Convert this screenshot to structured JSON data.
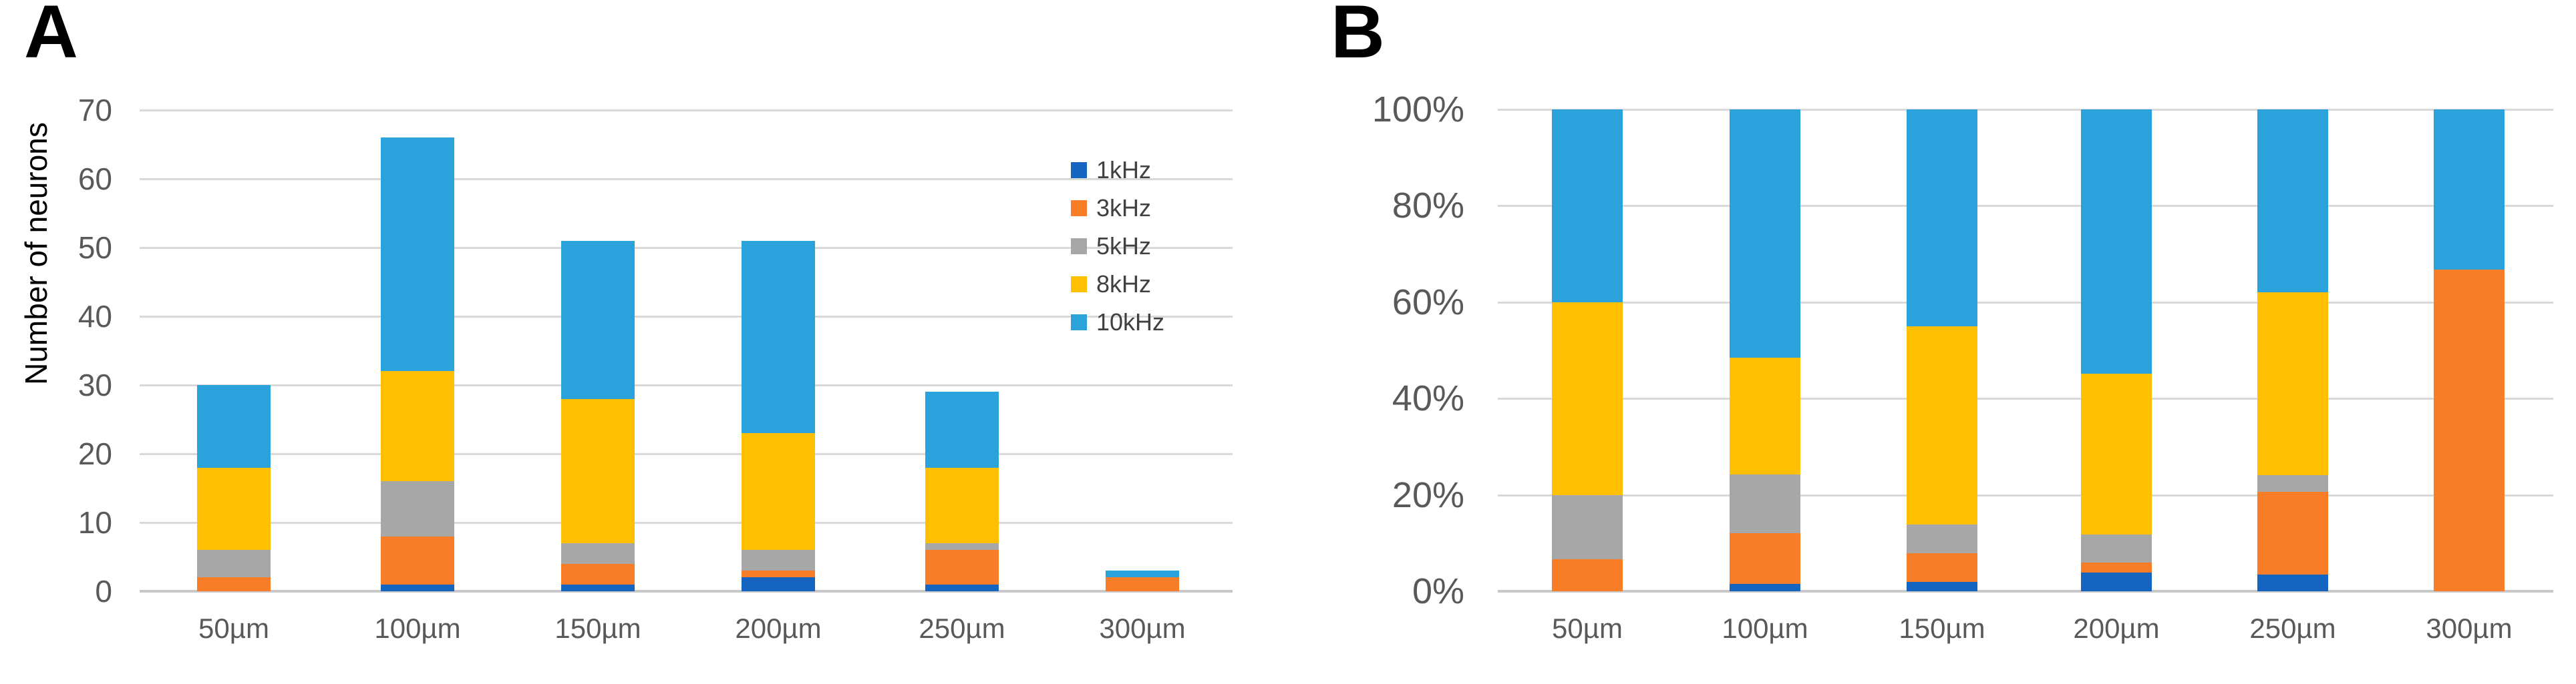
{
  "panels": {
    "a": {
      "label": "A",
      "y_axis_title": "Number of neurons"
    },
    "b": {
      "label": "B"
    }
  },
  "colors": {
    "khz1": "#1565C0",
    "khz3": "#F87D28",
    "khz5": "#A7A7A7",
    "khz8": "#FFC003",
    "khz10": "#2CA2DC",
    "gridline": "#D9D9D9",
    "axis_line": "#C7C7C7",
    "tick_text": "#595959",
    "legend_text": "#404040"
  },
  "chart_data": [
    {
      "id": "A",
      "type": "bar",
      "stacked": true,
      "percent": false,
      "ylabel": "Number of neurons",
      "xlabel": "",
      "ylim": [
        0,
        70
      ],
      "grid": true,
      "legend_position": "right-inside",
      "categories": [
        "50µm",
        "100µm",
        "150µm",
        "200µm",
        "250µm",
        "300µm"
      ],
      "yticks": [
        {
          "value": 0,
          "label": "0"
        },
        {
          "value": 10,
          "label": "10"
        },
        {
          "value": 20,
          "label": "20"
        },
        {
          "value": 30,
          "label": "30"
        },
        {
          "value": 40,
          "label": "40"
        },
        {
          "value": 50,
          "label": "50"
        },
        {
          "value": 60,
          "label": "60"
        },
        {
          "value": 70,
          "label": "70"
        }
      ],
      "series": [
        {
          "name": "1kHz",
          "color": "#1565C0",
          "values": [
            0,
            1,
            1,
            2,
            1,
            0
          ]
        },
        {
          "name": "3kHz",
          "color": "#F87D28",
          "values": [
            2,
            7,
            3,
            1,
            5,
            2
          ]
        },
        {
          "name": "5kHz",
          "color": "#A7A7A7",
          "values": [
            4,
            8,
            3,
            3,
            1,
            0
          ]
        },
        {
          "name": "8kHz",
          "color": "#FFC003",
          "values": [
            12,
            16,
            21,
            17,
            11,
            0
          ]
        },
        {
          "name": "10kHz",
          "color": "#2CA2DC",
          "values": [
            12,
            34,
            23,
            28,
            11,
            1
          ]
        }
      ],
      "totals": [
        30,
        66,
        51,
        51,
        29,
        3
      ]
    },
    {
      "id": "B",
      "type": "bar",
      "stacked": true,
      "percent": true,
      "ylabel": "",
      "xlabel": "",
      "ylim": [
        0,
        100
      ],
      "grid": true,
      "legend_position": "none",
      "categories": [
        "50µm",
        "100µm",
        "150µm",
        "200µm",
        "250µm",
        "300µm"
      ],
      "yticks": [
        {
          "value": 0,
          "label": "0%"
        },
        {
          "value": 20,
          "label": "20%"
        },
        {
          "value": 40,
          "label": "40%"
        },
        {
          "value": 60,
          "label": "60%"
        },
        {
          "value": 80,
          "label": "80%"
        },
        {
          "value": 100,
          "label": "100%"
        }
      ],
      "series": [
        {
          "name": "1kHz",
          "color": "#1565C0",
          "values": [
            0,
            1.5,
            2.0,
            3.9,
            3.4,
            0
          ]
        },
        {
          "name": "3kHz",
          "color": "#F87D28",
          "values": [
            6.7,
            10.6,
            5.9,
            2.0,
            17.2,
            66.7
          ]
        },
        {
          "name": "5kHz",
          "color": "#A7A7A7",
          "values": [
            13.3,
            12.1,
            5.9,
            5.9,
            3.4,
            0
          ]
        },
        {
          "name": "8kHz",
          "color": "#FFC003",
          "values": [
            40.0,
            24.2,
            41.2,
            33.3,
            37.9,
            0
          ]
        },
        {
          "name": "10kHz",
          "color": "#2CA2DC",
          "values": [
            40.0,
            51.5,
            45.1,
            54.9,
            37.9,
            33.3
          ]
        }
      ]
    }
  ]
}
